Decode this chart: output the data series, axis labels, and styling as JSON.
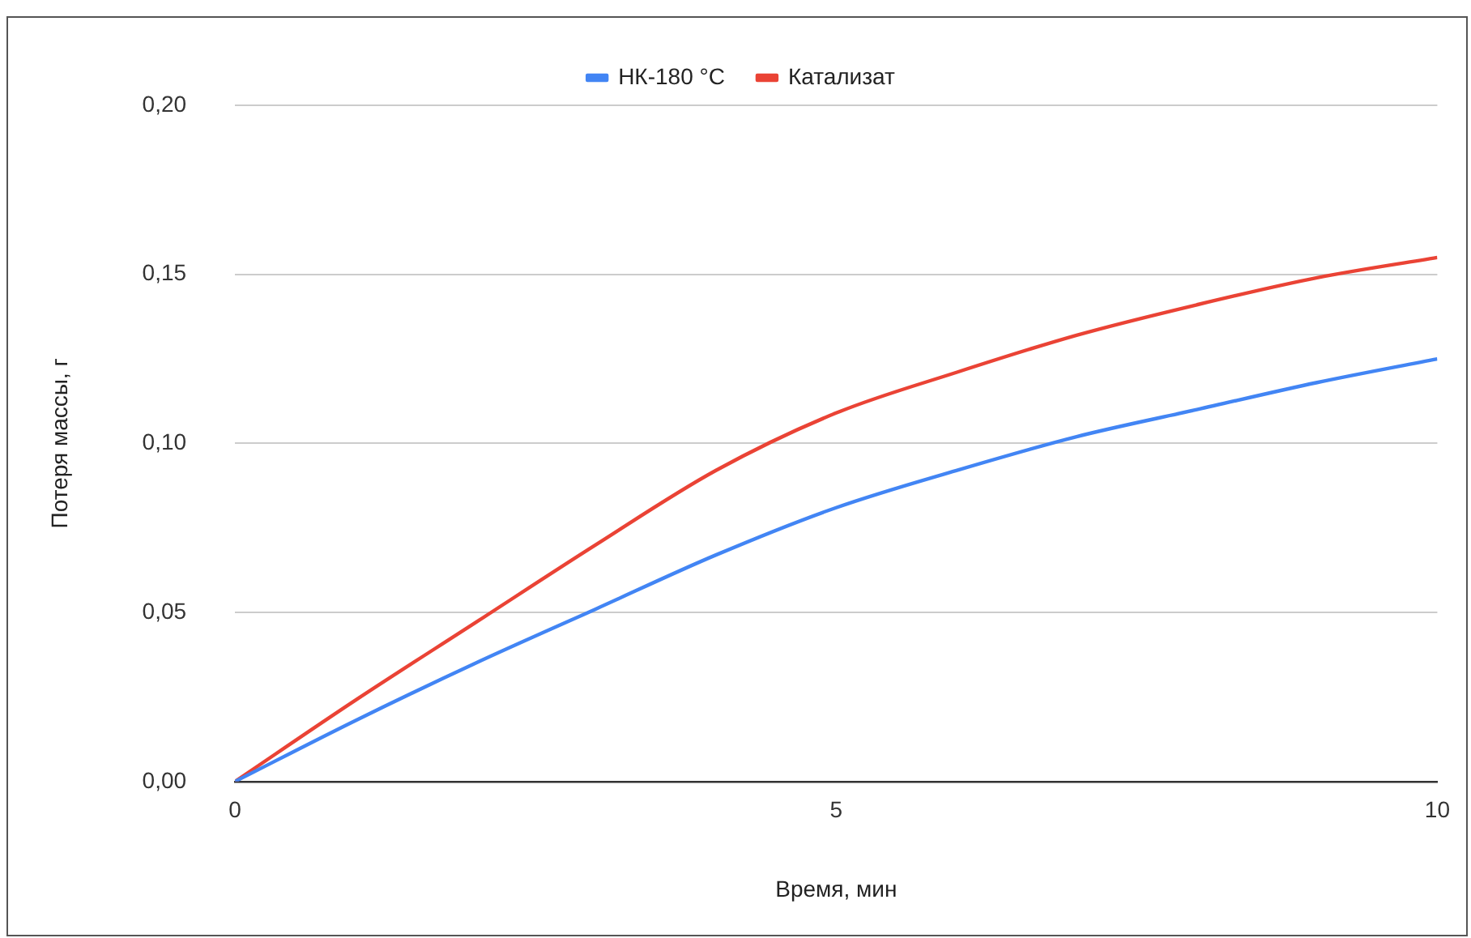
{
  "chart_data": {
    "type": "line",
    "xlabel": "Время, мин",
    "ylabel": "Потеря массы, г",
    "x": [
      0,
      1,
      2,
      3,
      4,
      5,
      6,
      7,
      8,
      9,
      10
    ],
    "series": [
      {
        "name": "НК-180 °C",
        "color": "#4285f4",
        "values": [
          0,
          0.018,
          0.035,
          0.051,
          0.067,
          0.081,
          0.092,
          0.102,
          0.11,
          0.118,
          0.125
        ]
      },
      {
        "name": "Катализат",
        "color": "#ea4335",
        "values": [
          0,
          0.024,
          0.047,
          0.07,
          0.092,
          0.109,
          0.121,
          0.132,
          0.141,
          0.149,
          0.155
        ]
      }
    ],
    "xlim": [
      0,
      10
    ],
    "xticks": [
      0,
      5,
      10
    ],
    "ylim": [
      0,
      0.2
    ],
    "yticks": [
      {
        "value": 0,
        "label": "0,00"
      },
      {
        "value": 0.05,
        "label": "0,05"
      },
      {
        "value": 0.1,
        "label": "0,10"
      },
      {
        "value": 0.15,
        "label": "0,15"
      },
      {
        "value": 0.2,
        "label": "0,20"
      }
    ],
    "grid": "y",
    "legend": "top",
    "marker": "none",
    "line_style": "solid"
  }
}
